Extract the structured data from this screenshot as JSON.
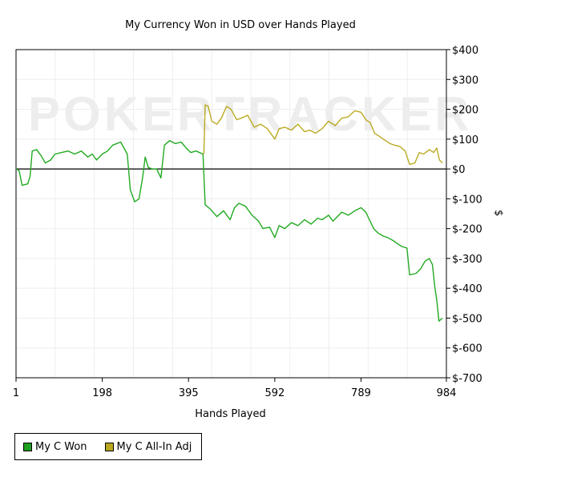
{
  "chart_data": {
    "type": "line",
    "title": "My Currency Won in USD over Hands Played",
    "xlabel": "Hands Played",
    "ylabel": "$",
    "xlim": [
      1,
      984
    ],
    "ylim": [
      -700,
      400
    ],
    "x_ticks": [
      1,
      198,
      395,
      592,
      789,
      984
    ],
    "y_ticks": [
      400,
      300,
      200,
      100,
      0,
      -100,
      -200,
      -300,
      -400,
      -500,
      -600,
      -700
    ],
    "y_tick_labels": [
      "$400",
      "$300",
      "$200",
      "$100",
      "$0",
      "$-100",
      "$-200",
      "$-300",
      "$-400",
      "$-500",
      "$-600",
      "$-700"
    ],
    "grid": true,
    "legend_position": "bottom-left",
    "watermark": "POKERTRACKER",
    "series": [
      {
        "name": "My C Won",
        "color": "#22aa22",
        "points": [
          [
            1,
            0
          ],
          [
            8,
            -5
          ],
          [
            15,
            -55
          ],
          [
            28,
            -50
          ],
          [
            33,
            -25
          ],
          [
            38,
            60
          ],
          [
            48,
            65
          ],
          [
            58,
            45
          ],
          [
            68,
            20
          ],
          [
            80,
            30
          ],
          [
            90,
            50
          ],
          [
            105,
            55
          ],
          [
            120,
            60
          ],
          [
            135,
            50
          ],
          [
            150,
            60
          ],
          [
            165,
            40
          ],
          [
            175,
            50
          ],
          [
            185,
            30
          ],
          [
            198,
            50
          ],
          [
            210,
            60
          ],
          [
            222,
            80
          ],
          [
            240,
            90
          ],
          [
            255,
            50
          ],
          [
            262,
            -70
          ],
          [
            272,
            -110
          ],
          [
            282,
            -100
          ],
          [
            290,
            -30
          ],
          [
            296,
            40
          ],
          [
            303,
            5
          ],
          [
            312,
            0
          ],
          [
            322,
            0
          ],
          [
            332,
            -30
          ],
          [
            340,
            80
          ],
          [
            352,
            95
          ],
          [
            365,
            85
          ],
          [
            378,
            90
          ],
          [
            390,
            70
          ],
          [
            400,
            55
          ],
          [
            412,
            60
          ],
          [
            428,
            50
          ],
          [
            433,
            -120
          ],
          [
            445,
            -135
          ],
          [
            460,
            -160
          ],
          [
            475,
            -140
          ],
          [
            490,
            -170
          ],
          [
            500,
            -130
          ],
          [
            510,
            -115
          ],
          [
            525,
            -125
          ],
          [
            540,
            -155
          ],
          [
            555,
            -175
          ],
          [
            565,
            -200
          ],
          [
            580,
            -195
          ],
          [
            592,
            -230
          ],
          [
            602,
            -190
          ],
          [
            615,
            -200
          ],
          [
            630,
            -180
          ],
          [
            645,
            -190
          ],
          [
            660,
            -170
          ],
          [
            675,
            -185
          ],
          [
            690,
            -165
          ],
          [
            700,
            -170
          ],
          [
            715,
            -155
          ],
          [
            725,
            -175
          ],
          [
            745,
            -145
          ],
          [
            760,
            -155
          ],
          [
            775,
            -140
          ],
          [
            789,
            -130
          ],
          [
            800,
            -145
          ],
          [
            808,
            -170
          ],
          [
            818,
            -200
          ],
          [
            828,
            -215
          ],
          [
            840,
            -225
          ],
          [
            850,
            -230
          ],
          [
            862,
            -240
          ],
          [
            872,
            -250
          ],
          [
            882,
            -260
          ],
          [
            894,
            -265
          ],
          [
            900,
            -355
          ],
          [
            915,
            -350
          ],
          [
            925,
            -335
          ],
          [
            935,
            -310
          ],
          [
            945,
            -300
          ],
          [
            952,
            -320
          ],
          [
            958,
            -400
          ],
          [
            962,
            -440
          ],
          [
            967,
            -510
          ],
          [
            975,
            -500
          ]
        ]
      },
      {
        "name": "My C All-In Adj",
        "color": "#bbaa22",
        "points": [
          [
            430,
            50
          ],
          [
            433,
            215
          ],
          [
            440,
            210
          ],
          [
            448,
            160
          ],
          [
            460,
            150
          ],
          [
            470,
            170
          ],
          [
            482,
            210
          ],
          [
            492,
            200
          ],
          [
            505,
            165
          ],
          [
            515,
            170
          ],
          [
            530,
            180
          ],
          [
            545,
            140
          ],
          [
            560,
            150
          ],
          [
            575,
            135
          ],
          [
            592,
            100
          ],
          [
            602,
            135
          ],
          [
            615,
            140
          ],
          [
            630,
            130
          ],
          [
            645,
            150
          ],
          [
            660,
            125
          ],
          [
            672,
            130
          ],
          [
            685,
            120
          ],
          [
            700,
            135
          ],
          [
            715,
            160
          ],
          [
            730,
            145
          ],
          [
            745,
            170
          ],
          [
            760,
            175
          ],
          [
            775,
            195
          ],
          [
            789,
            190
          ],
          [
            800,
            165
          ],
          [
            810,
            155
          ],
          [
            820,
            120
          ],
          [
            830,
            110
          ],
          [
            840,
            100
          ],
          [
            855,
            85
          ],
          [
            865,
            80
          ],
          [
            878,
            75
          ],
          [
            890,
            60
          ],
          [
            900,
            15
          ],
          [
            912,
            20
          ],
          [
            922,
            55
          ],
          [
            932,
            50
          ],
          [
            945,
            65
          ],
          [
            955,
            55
          ],
          [
            962,
            70
          ],
          [
            968,
            30
          ],
          [
            975,
            20
          ]
        ]
      }
    ]
  }
}
